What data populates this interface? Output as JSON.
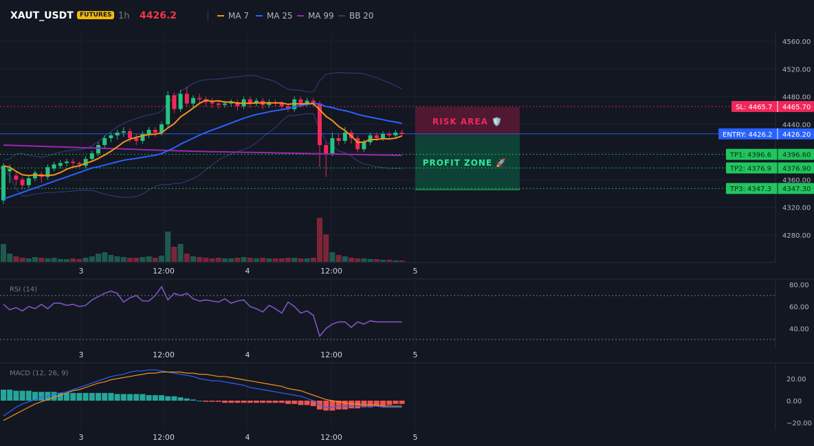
{
  "header": {
    "symbol": "XAUT_USDT",
    "badge": "FUTURES",
    "timeframe": "1h",
    "last_price": "4426.2",
    "legend": [
      {
        "label": "MA 7",
        "color": "#f7931a"
      },
      {
        "label": "MA 25",
        "color": "#2962ff"
      },
      {
        "label": "MA 99",
        "color": "#9c27b0"
      },
      {
        "label": "BB 20",
        "color": "#2a3c6e"
      }
    ]
  },
  "colors": {
    "up": "#26c281",
    "down": "#f0285a",
    "vol_up": "#1e5a4f",
    "vol_down": "#7b2638",
    "rsi": "#7e57c2",
    "macd": "#2962ff",
    "signal": "#f7931a",
    "hist_up": "#26a69a",
    "hist_down": "#ef5350"
  },
  "zones": {
    "risk_label": "RISK AREA 🛡️",
    "profit_label": "PROFIT ZONE 🚀"
  },
  "levels": [
    {
      "id": "sl",
      "tag": "SL: 4465.7",
      "value": "4465.70",
      "price": 4465.7,
      "color": "#f0285a"
    },
    {
      "id": "entry",
      "tag": "ENTRY: 4426.2",
      "value": "4426.20",
      "price": 4426.2,
      "color": "#2962ff"
    },
    {
      "id": "tp1",
      "tag": "TP1: 4396.6",
      "value": "4396.60",
      "price": 4396.6,
      "color": "#22c55e"
    },
    {
      "id": "tp2",
      "tag": "TP2: 4376.9",
      "value": "4376.90",
      "price": 4376.9,
      "color": "#22c55e"
    },
    {
      "id": "tp3",
      "tag": "TP3: 4347.3",
      "value": "4347.30",
      "price": 4347.3,
      "color": "#22c55e"
    }
  ],
  "price_axis": {
    "ticks": [
      "4560.00",
      "4520.00",
      "4480.00",
      "4440.00",
      "4400.00",
      "4360.00",
      "4320.00",
      "4280.00"
    ],
    "min": 4240,
    "max": 4570
  },
  "time_axis": {
    "labels": [
      "3",
      "12:00",
      "4",
      "12:00",
      "5"
    ]
  },
  "rsi": {
    "title": "RSI (14)",
    "ticks": [
      "80.00",
      "60.00",
      "40.00"
    ],
    "upper": 70,
    "lower": 30
  },
  "macd": {
    "title": "MACD (12, 26, 9)",
    "ticks": [
      "20.00",
      "0.00",
      "−20.00"
    ]
  },
  "candles": [
    [
      4330,
      4380,
      4325,
      4384
    ],
    [
      4372,
      4376,
      4355,
      4382
    ],
    [
      4366,
      4360,
      4352,
      4372
    ],
    [
      4360,
      4352,
      4346,
      4364
    ],
    [
      4352,
      4362,
      4348,
      4366
    ],
    [
      4362,
      4370,
      4358,
      4374
    ],
    [
      4368,
      4364,
      4356,
      4372
    ],
    [
      4364,
      4378,
      4360,
      4382
    ],
    [
      4376,
      4382,
      4372,
      4386
    ],
    [
      4380,
      4384,
      4376,
      4388
    ],
    [
      4384,
      4386,
      4380,
      4390
    ],
    [
      4386,
      4384,
      4380,
      4390
    ],
    [
      4384,
      4382,
      4378,
      4386
    ],
    [
      4380,
      4390,
      4376,
      4394
    ],
    [
      4390,
      4398,
      4386,
      4402
    ],
    [
      4398,
      4410,
      4394,
      4414
    ],
    [
      4410,
      4420,
      4406,
      4424
    ],
    [
      4420,
      4424,
      4414,
      4428
    ],
    [
      4424,
      4428,
      4418,
      4432
    ],
    [
      4428,
      4430,
      4422,
      4436
    ],
    [
      4430,
      4420,
      4414,
      4434
    ],
    [
      4420,
      4416,
      4410,
      4426
    ],
    [
      4416,
      4426,
      4412,
      4430
    ],
    [
      4426,
      4432,
      4420,
      4436
    ],
    [
      4432,
      4428,
      4422,
      4436
    ],
    [
      4428,
      4440,
      4424,
      4444
    ],
    [
      4440,
      4482,
      4436,
      4488
    ],
    [
      4482,
      4462,
      4456,
      4486
    ],
    [
      4462,
      4484,
      4458,
      4490
    ],
    [
      4484,
      4470,
      4466,
      4494
    ],
    [
      4470,
      4478,
      4464,
      4482
    ],
    [
      4478,
      4476,
      4470,
      4484
    ],
    [
      4476,
      4472,
      4466,
      4480
    ],
    [
      4472,
      4470,
      4464,
      4478
    ],
    [
      4470,
      4468,
      4462,
      4474
    ],
    [
      4468,
      4470,
      4464,
      4474
    ],
    [
      4470,
      4472,
      4466,
      4476
    ],
    [
      4472,
      4466,
      4460,
      4476
    ],
    [
      4466,
      4476,
      4462,
      4480
    ],
    [
      4476,
      4470,
      4464,
      4480
    ],
    [
      4470,
      4474,
      4466,
      4478
    ],
    [
      4474,
      4468,
      4462,
      4478
    ],
    [
      4468,
      4472,
      4464,
      4476
    ],
    [
      4472,
      4470,
      4466,
      4476
    ],
    [
      4470,
      4466,
      4462,
      4474
    ],
    [
      4466,
      4462,
      4458,
      4470
    ],
    [
      4462,
      4476,
      4458,
      4480
    ],
    [
      4476,
      4470,
      4464,
      4480
    ],
    [
      4470,
      4474,
      4466,
      4478
    ],
    [
      4474,
      4470,
      4466,
      4478
    ],
    [
      4470,
      4410,
      4378,
      4474
    ],
    [
      4410,
      4398,
      4364,
      4414
    ],
    [
      4398,
      4420,
      4394,
      4428
    ],
    [
      4420,
      4416,
      4410,
      4426
    ],
    [
      4416,
      4428,
      4412,
      4436
    ],
    [
      4428,
      4420,
      4412,
      4432
    ],
    [
      4420,
      4404,
      4400,
      4424
    ],
    [
      4404,
      4414,
      4400,
      4418
    ],
    [
      4414,
      4424,
      4410,
      4428
    ],
    [
      4424,
      4420,
      4416,
      4428
    ],
    [
      4420,
      4426,
      4416,
      4430
    ],
    [
      4426,
      4424,
      4420,
      4430
    ],
    [
      4424,
      4428,
      4420,
      4432
    ],
    [
      4428,
      4426,
      4422,
      4432
    ]
  ],
  "volumes": [
    26,
    12,
    8,
    6,
    5,
    7,
    6,
    5,
    6,
    4,
    4,
    5,
    4,
    6,
    8,
    12,
    14,
    10,
    8,
    7,
    6,
    6,
    7,
    8,
    6,
    9,
    44,
    22,
    26,
    12,
    8,
    7,
    6,
    5,
    6,
    5,
    5,
    6,
    7,
    6,
    5,
    6,
    5,
    5,
    5,
    6,
    6,
    5,
    5,
    6,
    64,
    40,
    14,
    10,
    8,
    6,
    5,
    5,
    4,
    4,
    3,
    3,
    2,
    2
  ],
  "rsi_values": [
    62,
    57,
    59,
    56,
    60,
    58,
    62,
    58,
    63,
    63,
    61,
    62,
    60,
    61,
    66,
    69,
    72,
    74,
    72,
    64,
    68,
    70,
    65,
    65,
    70,
    78,
    66,
    72,
    70,
    72,
    67,
    65,
    66,
    65,
    64,
    67,
    63,
    65,
    66,
    60,
    58,
    55,
    61,
    58,
    54,
    64,
    60,
    54,
    56,
    52,
    33,
    40,
    44,
    46,
    46,
    41,
    46,
    44,
    47,
    46,
    46,
    46,
    46,
    46
  ],
  "macd_values": [
    -14,
    -10,
    -6,
    -3,
    -1,
    1,
    3,
    4,
    6,
    7,
    8,
    10,
    12,
    14,
    16,
    18,
    20,
    22,
    23,
    24,
    26,
    27,
    27,
    28,
    28,
    27,
    26,
    25,
    24,
    23,
    22,
    20,
    19,
    18,
    18,
    17,
    16,
    15,
    14,
    12,
    11,
    10,
    9,
    8,
    7,
    6,
    5,
    4,
    2,
    0,
    -4,
    -6,
    -6,
    -5,
    -5,
    -5,
    -5,
    -5,
    -5,
    -5,
    -6,
    -6,
    -6,
    -6
  ],
  "signal_values": [
    -18,
    -15,
    -12,
    -9,
    -6,
    -3,
    -1,
    1,
    3,
    5,
    7,
    9,
    10,
    12,
    14,
    16,
    17,
    19,
    20,
    21,
    22,
    23,
    24,
    25,
    25,
    26,
    26,
    26,
    26,
    25,
    25,
    24,
    24,
    23,
    22,
    22,
    21,
    20,
    19,
    18,
    17,
    16,
    15,
    14,
    13,
    11,
    10,
    9,
    7,
    5,
    3,
    1,
    0,
    -1,
    -2,
    -3,
    -3,
    -4,
    -4,
    -4,
    -5,
    -5,
    -5,
    -5
  ],
  "hist_values": [
    10,
    10,
    9,
    9,
    9,
    8,
    8,
    8,
    8,
    7,
    7,
    7,
    7,
    7,
    7,
    7,
    7,
    7,
    6,
    6,
    6,
    6,
    6,
    5,
    5,
    5,
    4,
    4,
    3,
    2,
    1,
    0,
    -1,
    -1,
    -1,
    -2,
    -2,
    -2,
    -2,
    -2,
    -2,
    -2,
    -2,
    -2,
    -2,
    -3,
    -3,
    -4,
    -4,
    -5,
    -8,
    -9,
    -9,
    -8,
    -8,
    -7,
    -7,
    -6,
    -6,
    -5,
    -5,
    -4,
    -3,
    -3
  ]
}
